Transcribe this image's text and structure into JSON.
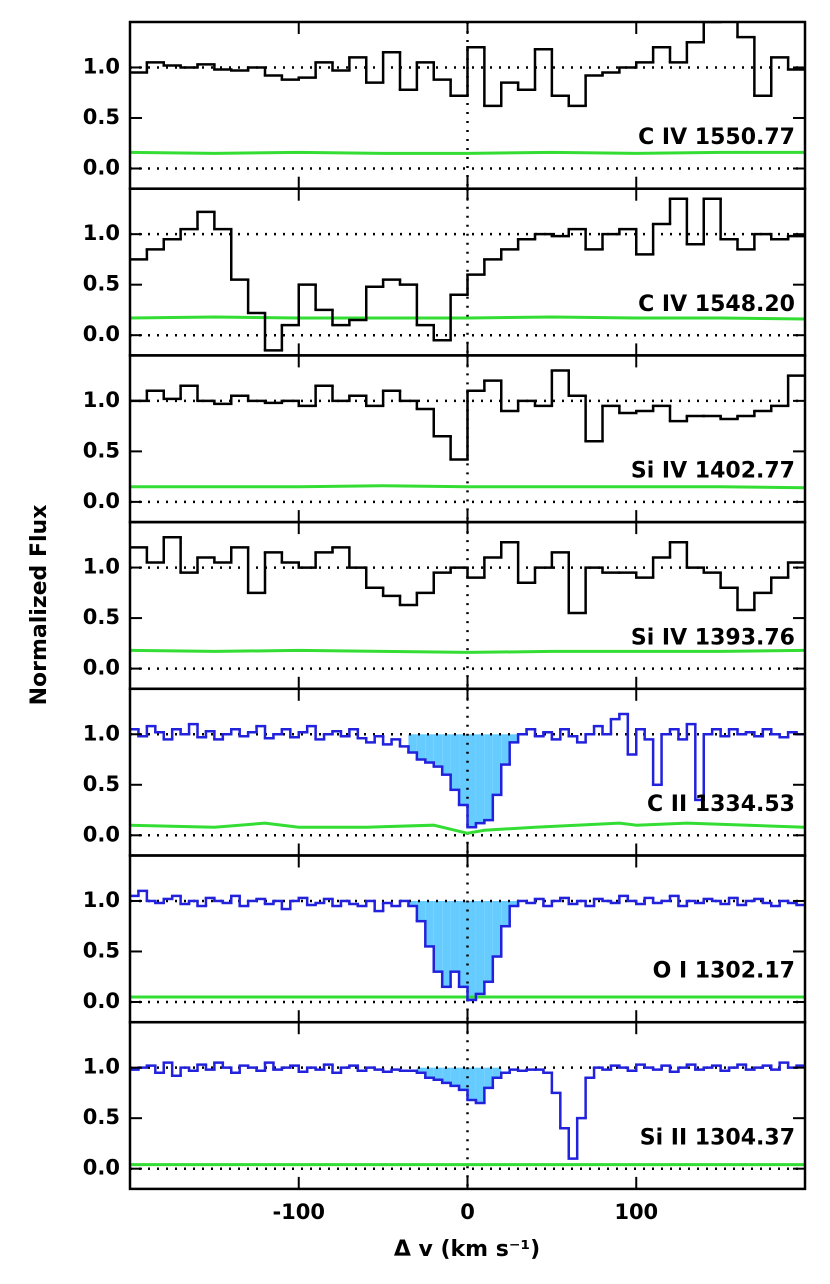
{
  "ylabel": "Normalized Flux",
  "xlabel": "Δ v (km s⁻¹)",
  "chart_data": [
    {
      "type": "step",
      "label": "C IV 1550.77",
      "xlim": [
        -200,
        200
      ],
      "ylim": [
        -0.2,
        1.45
      ],
      "xticks": [
        -100,
        0,
        100
      ],
      "yticks": [
        {
          "value": 0,
          "label": "0.0"
        },
        0.5,
        {
          "value": 1,
          "label": "1.0"
        }
      ],
      "hlines": [
        0,
        1
      ],
      "vline": 0,
      "x": [
        -195,
        -185,
        -175,
        -165,
        -155,
        -145,
        -135,
        -125,
        -115,
        -105,
        -95,
        -85,
        -75,
        -65,
        -55,
        -45,
        -35,
        -25,
        -15,
        -5,
        5,
        15,
        25,
        35,
        45,
        55,
        65,
        75,
        85,
        95,
        105,
        115,
        125,
        135,
        145,
        155,
        165,
        175,
        185,
        195
      ],
      "flux": {
        "color": "#000000",
        "values": [
          0.95,
          1.05,
          1.02,
          1.0,
          1.03,
          0.98,
          0.97,
          1.0,
          0.92,
          0.88,
          0.9,
          1.05,
          0.97,
          1.1,
          0.85,
          1.15,
          0.78,
          1.05,
          0.88,
          0.72,
          1.2,
          0.62,
          0.85,
          0.78,
          1.18,
          0.72,
          0.62,
          0.92,
          0.95,
          1.0,
          1.05,
          1.2,
          1.05,
          1.25,
          1.45,
          1.5,
          1.3,
          0.72,
          1.1,
          0.98
        ]
      },
      "error": {
        "color": "#33dd33",
        "x": [
          -200,
          -150,
          -100,
          -50,
          0,
          50,
          100,
          150,
          200
        ],
        "values": [
          0.16,
          0.15,
          0.16,
          0.15,
          0.15,
          0.16,
          0.15,
          0.16,
          0.16
        ]
      }
    },
    {
      "type": "step",
      "label": "C IV 1548.20",
      "xlim": [
        -200,
        200
      ],
      "ylim": [
        -0.2,
        1.45
      ],
      "xticks": [
        -100,
        0,
        100
      ],
      "yticks": [
        {
          "value": 0,
          "label": "0.0"
        },
        0.5,
        {
          "value": 1,
          "label": "1.0"
        }
      ],
      "hlines": [
        0,
        1
      ],
      "vline": 0,
      "x": [
        -195,
        -185,
        -175,
        -165,
        -155,
        -145,
        -135,
        -125,
        -115,
        -105,
        -95,
        -85,
        -75,
        -65,
        -55,
        -45,
        -35,
        -25,
        -15,
        -5,
        5,
        15,
        25,
        35,
        45,
        55,
        65,
        75,
        85,
        95,
        105,
        115,
        125,
        135,
        145,
        155,
        165,
        175,
        185,
        195
      ],
      "flux": {
        "color": "#000000",
        "values": [
          0.75,
          0.85,
          0.95,
          1.05,
          1.22,
          1.05,
          0.55,
          0.22,
          -0.15,
          0.1,
          0.5,
          0.25,
          0.1,
          0.15,
          0.48,
          0.55,
          0.5,
          0.1,
          -0.05,
          0.4,
          0.6,
          0.75,
          0.85,
          0.95,
          1.0,
          0.98,
          1.05,
          0.85,
          1.0,
          1.05,
          0.8,
          1.1,
          1.35,
          0.9,
          1.35,
          0.95,
          0.85,
          1.0,
          0.95,
          0.98
        ]
      },
      "error": {
        "color": "#33dd33",
        "x": [
          -200,
          -150,
          -100,
          -50,
          0,
          50,
          100,
          150,
          200
        ],
        "values": [
          0.17,
          0.18,
          0.17,
          0.17,
          0.17,
          0.18,
          0.17,
          0.17,
          0.16
        ]
      }
    },
    {
      "type": "step",
      "label": "Si IV 1402.77",
      "xlim": [
        -200,
        200
      ],
      "ylim": [
        -0.2,
        1.45
      ],
      "xticks": [
        -100,
        0,
        100
      ],
      "yticks": [
        {
          "value": 0,
          "label": "0.0"
        },
        0.5,
        {
          "value": 1,
          "label": "1.0"
        }
      ],
      "hlines": [
        0,
        1
      ],
      "vline": 0,
      "x": [
        -195,
        -185,
        -175,
        -165,
        -155,
        -145,
        -135,
        -125,
        -115,
        -105,
        -95,
        -85,
        -75,
        -65,
        -55,
        -45,
        -35,
        -25,
        -15,
        -5,
        5,
        15,
        25,
        35,
        45,
        55,
        65,
        75,
        85,
        95,
        105,
        115,
        125,
        135,
        145,
        155,
        165,
        175,
        185,
        195
      ],
      "flux": {
        "color": "#000000",
        "values": [
          1.0,
          1.1,
          1.02,
          1.15,
          1.0,
          0.97,
          1.05,
          1.0,
          0.98,
          1.0,
          0.95,
          1.15,
          1.0,
          1.05,
          0.95,
          1.1,
          1.0,
          0.92,
          0.65,
          0.42,
          1.1,
          1.2,
          0.9,
          1.0,
          0.95,
          1.3,
          1.05,
          0.6,
          0.95,
          0.88,
          0.9,
          0.95,
          0.8,
          0.85,
          0.85,
          0.82,
          0.85,
          0.9,
          0.95,
          1.25
        ]
      },
      "error": {
        "color": "#33dd33",
        "x": [
          -200,
          -150,
          -100,
          -50,
          0,
          50,
          100,
          150,
          200
        ],
        "values": [
          0.15,
          0.15,
          0.15,
          0.16,
          0.15,
          0.15,
          0.15,
          0.15,
          0.14
        ]
      }
    },
    {
      "type": "step",
      "label": "Si IV 1393.76",
      "xlim": [
        -200,
        200
      ],
      "ylim": [
        -0.2,
        1.45
      ],
      "xticks": [
        -100,
        0,
        100
      ],
      "yticks": [
        {
          "value": 0,
          "label": "0.0"
        },
        0.5,
        {
          "value": 1,
          "label": "1.0"
        }
      ],
      "hlines": [
        0,
        1
      ],
      "vline": 0,
      "x": [
        -195,
        -185,
        -175,
        -165,
        -155,
        -145,
        -135,
        -125,
        -115,
        -105,
        -95,
        -85,
        -75,
        -65,
        -55,
        -45,
        -35,
        -25,
        -15,
        -5,
        5,
        15,
        25,
        35,
        45,
        55,
        65,
        75,
        85,
        95,
        105,
        115,
        125,
        135,
        145,
        155,
        165,
        175,
        185,
        195
      ],
      "flux": {
        "color": "#000000",
        "values": [
          1.2,
          1.05,
          1.3,
          0.95,
          1.1,
          1.05,
          1.2,
          0.75,
          1.15,
          1.05,
          1.0,
          1.15,
          1.2,
          1.0,
          0.8,
          0.72,
          0.63,
          0.75,
          0.95,
          1.0,
          0.9,
          1.1,
          1.25,
          0.85,
          1.0,
          1.15,
          0.55,
          1.0,
          0.95,
          0.95,
          0.9,
          1.1,
          1.25,
          1.0,
          0.95,
          0.8,
          0.58,
          0.75,
          0.9,
          1.05
        ]
      },
      "error": {
        "color": "#33dd33",
        "x": [
          -200,
          -150,
          -100,
          -50,
          0,
          50,
          100,
          150,
          200
        ],
        "values": [
          0.18,
          0.17,
          0.18,
          0.17,
          0.16,
          0.17,
          0.17,
          0.17,
          0.18
        ]
      }
    },
    {
      "type": "step",
      "label": "C II 1334.53",
      "xlim": [
        -200,
        200
      ],
      "ylim": [
        -0.2,
        1.45
      ],
      "xticks": [
        -100,
        0,
        100
      ],
      "yticks": [
        {
          "value": 0,
          "label": "0.0"
        },
        0.5,
        {
          "value": 1,
          "label": "1.0"
        }
      ],
      "hlines": [
        0,
        1
      ],
      "vline": 0,
      "shade": [
        -35,
        32
      ],
      "shade_color": "#66ccff",
      "x": [
        -197.5,
        -192.5,
        -187.5,
        -182.5,
        -177.5,
        -172.5,
        -167.5,
        -162.5,
        -157.5,
        -152.5,
        -147.5,
        -142.5,
        -137.5,
        -132.5,
        -127.5,
        -122.5,
        -117.5,
        -112.5,
        -107.5,
        -102.5,
        -97.5,
        -92.5,
        -87.5,
        -82.5,
        -77.5,
        -72.5,
        -67.5,
        -62.5,
        -57.5,
        -52.5,
        -47.5,
        -42.5,
        -37.5,
        -32.5,
        -27.5,
        -22.5,
        -17.5,
        -12.5,
        -7.5,
        -2.5,
        2.5,
        7.5,
        12.5,
        17.5,
        22.5,
        27.5,
        32.5,
        37.5,
        42.5,
        47.5,
        52.5,
        57.5,
        62.5,
        67.5,
        72.5,
        77.5,
        82.5,
        87.5,
        92.5,
        97.5,
        102.5,
        107.5,
        112.5,
        117.5,
        122.5,
        127.5,
        132.5,
        137.5,
        142.5,
        147.5,
        152.5,
        157.5,
        162.5,
        167.5,
        172.5,
        177.5,
        182.5,
        187.5,
        192.5,
        197.5
      ],
      "flux": {
        "color": "#2222dd",
        "values": [
          1.05,
          0.98,
          1.08,
          1.02,
          0.95,
          1.05,
          1.0,
          1.1,
          0.97,
          1.03,
          0.95,
          1.0,
          1.05,
          0.98,
          1.02,
          1.08,
          0.96,
          1.0,
          1.05,
          0.97,
          1.02,
          1.08,
          0.95,
          1.0,
          1.03,
          0.98,
          1.05,
          0.96,
          0.92,
          0.98,
          0.9,
          0.95,
          0.88,
          0.82,
          0.75,
          0.72,
          0.68,
          0.6,
          0.45,
          0.3,
          0.08,
          0.12,
          0.15,
          0.4,
          0.7,
          0.92,
          1.0,
          1.05,
          0.98,
          1.02,
          0.95,
          1.05,
          0.98,
          0.92,
          1.0,
          1.08,
          1.0,
          1.15,
          1.2,
          0.8,
          1.05,
          0.95,
          0.5,
          1.0,
          1.05,
          0.95,
          1.1,
          0.35,
          1.0,
          1.05,
          0.98,
          1.05,
          1.0,
          1.02,
          0.98,
          1.05,
          1.0,
          0.97,
          1.02,
          1.0
        ]
      },
      "error": {
        "color": "#33dd33",
        "x": [
          -200,
          -150,
          -120,
          -100,
          -60,
          -20,
          0,
          10,
          40,
          90,
          100,
          130,
          200
        ],
        "values": [
          0.1,
          0.08,
          0.12,
          0.08,
          0.08,
          0.1,
          0.02,
          0.05,
          0.08,
          0.12,
          0.1,
          0.12,
          0.08
        ]
      }
    },
    {
      "type": "step",
      "label": "O I 1302.17",
      "xlim": [
        -200,
        200
      ],
      "ylim": [
        -0.2,
        1.45
      ],
      "xticks": [
        -100,
        0,
        100
      ],
      "yticks": [
        {
          "value": 0,
          "label": "0.0"
        },
        0.5,
        {
          "value": 1,
          "label": "1.0"
        }
      ],
      "hlines": [
        0,
        1
      ],
      "vline": 0,
      "shade": [
        -35,
        32
      ],
      "shade_color": "#66ccff",
      "x": [
        -197.5,
        -192.5,
        -187.5,
        -182.5,
        -177.5,
        -172.5,
        -167.5,
        -162.5,
        -157.5,
        -152.5,
        -147.5,
        -142.5,
        -137.5,
        -132.5,
        -127.5,
        -122.5,
        -117.5,
        -112.5,
        -107.5,
        -102.5,
        -97.5,
        -92.5,
        -87.5,
        -82.5,
        -77.5,
        -72.5,
        -67.5,
        -62.5,
        -57.5,
        -52.5,
        -47.5,
        -42.5,
        -37.5,
        -32.5,
        -27.5,
        -22.5,
        -17.5,
        -12.5,
        -7.5,
        -2.5,
        2.5,
        7.5,
        12.5,
        17.5,
        22.5,
        27.5,
        32.5,
        37.5,
        42.5,
        47.5,
        52.5,
        57.5,
        62.5,
        67.5,
        72.5,
        77.5,
        82.5,
        87.5,
        92.5,
        97.5,
        102.5,
        107.5,
        112.5,
        117.5,
        122.5,
        127.5,
        132.5,
        137.5,
        142.5,
        147.5,
        152.5,
        157.5,
        162.5,
        167.5,
        172.5,
        177.5,
        182.5,
        187.5,
        192.5,
        197.5
      ],
      "flux": {
        "color": "#2222dd",
        "values": [
          1.05,
          1.1,
          1.0,
          0.98,
          1.02,
          1.05,
          0.97,
          1.0,
          0.95,
          1.03,
          1.0,
          0.98,
          1.05,
          0.95,
          1.0,
          1.02,
          0.97,
          1.0,
          0.92,
          1.0,
          1.03,
          0.96,
          0.98,
          1.02,
          0.95,
          1.0,
          0.97,
          0.95,
          1.0,
          0.9,
          0.98,
          0.95,
          1.0,
          0.95,
          0.8,
          0.55,
          0.3,
          0.15,
          0.3,
          0.15,
          0.02,
          0.08,
          0.2,
          0.45,
          0.75,
          0.95,
          1.0,
          0.98,
          1.02,
          0.95,
          1.0,
          1.03,
          0.97,
          1.0,
          0.95,
          1.02,
          1.0,
          0.98,
          1.05,
          1.0,
          0.97,
          1.03,
          0.98,
          1.0,
          1.05,
          0.95,
          1.0,
          0.98,
          1.02,
          1.0,
          0.97,
          1.03,
          0.96,
          1.0,
          1.02,
          0.98,
          0.95,
          1.0,
          0.98,
          0.96
        ]
      },
      "error": {
        "color": "#33dd33",
        "x": [
          -200,
          200
        ],
        "values": [
          0.05,
          0.05
        ]
      }
    },
    {
      "type": "step",
      "label": "Si II 1304.37",
      "xlim": [
        -200,
        200
      ],
      "ylim": [
        -0.2,
        1.45
      ],
      "xticks": [
        -100,
        0,
        100
      ],
      "yticks": [
        {
          "value": 0,
          "label": "0.0"
        },
        0.5,
        {
          "value": 1,
          "label": "1.0"
        }
      ],
      "hlines": [
        0,
        1
      ],
      "vline": 0,
      "shade": [
        -30,
        22
      ],
      "shade_color": "#66ccff",
      "x": [
        -197.5,
        -192.5,
        -187.5,
        -182.5,
        -177.5,
        -172.5,
        -167.5,
        -162.5,
        -157.5,
        -152.5,
        -147.5,
        -142.5,
        -137.5,
        -132.5,
        -127.5,
        -122.5,
        -117.5,
        -112.5,
        -107.5,
        -102.5,
        -97.5,
        -92.5,
        -87.5,
        -82.5,
        -77.5,
        -72.5,
        -67.5,
        -62.5,
        -57.5,
        -52.5,
        -47.5,
        -42.5,
        -37.5,
        -32.5,
        -27.5,
        -22.5,
        -17.5,
        -12.5,
        -7.5,
        -2.5,
        2.5,
        7.5,
        12.5,
        17.5,
        22.5,
        27.5,
        32.5,
        37.5,
        42.5,
        47.5,
        52.5,
        57.5,
        62.5,
        67.5,
        72.5,
        77.5,
        82.5,
        87.5,
        92.5,
        97.5,
        102.5,
        107.5,
        112.5,
        117.5,
        122.5,
        127.5,
        132.5,
        137.5,
        142.5,
        147.5,
        152.5,
        157.5,
        162.5,
        167.5,
        172.5,
        177.5,
        182.5,
        187.5,
        192.5,
        197.5
      ],
      "flux": {
        "color": "#2222dd",
        "values": [
          0.98,
          1.0,
          1.02,
          0.95,
          1.05,
          0.92,
          1.0,
          0.97,
          1.03,
          0.98,
          1.05,
          1.0,
          0.95,
          1.02,
          1.0,
          0.97,
          1.05,
          0.98,
          1.0,
          1.02,
          0.96,
          1.0,
          0.98,
          1.03,
          0.95,
          1.0,
          1.02,
          0.97,
          1.0,
          0.98,
          0.96,
          0.98,
          0.97,
          0.97,
          0.95,
          0.9,
          0.88,
          0.85,
          0.82,
          0.78,
          0.68,
          0.65,
          0.8,
          0.9,
          0.95,
          0.98,
          0.97,
          0.98,
          0.98,
          0.95,
          0.75,
          0.4,
          0.1,
          0.5,
          0.9,
          1.0,
          0.98,
          1.02,
          1.0,
          0.97,
          1.03,
          1.0,
          0.98,
          1.02,
          0.96,
          1.0,
          1.03,
          0.98,
          1.0,
          1.02,
          0.97,
          1.0,
          1.03,
          0.98,
          1.0,
          1.02,
          0.98,
          1.05,
          1.0,
          1.02
        ]
      },
      "error": {
        "color": "#33dd33",
        "x": [
          -200,
          200
        ],
        "values": [
          0.04,
          0.04
        ]
      }
    }
  ]
}
